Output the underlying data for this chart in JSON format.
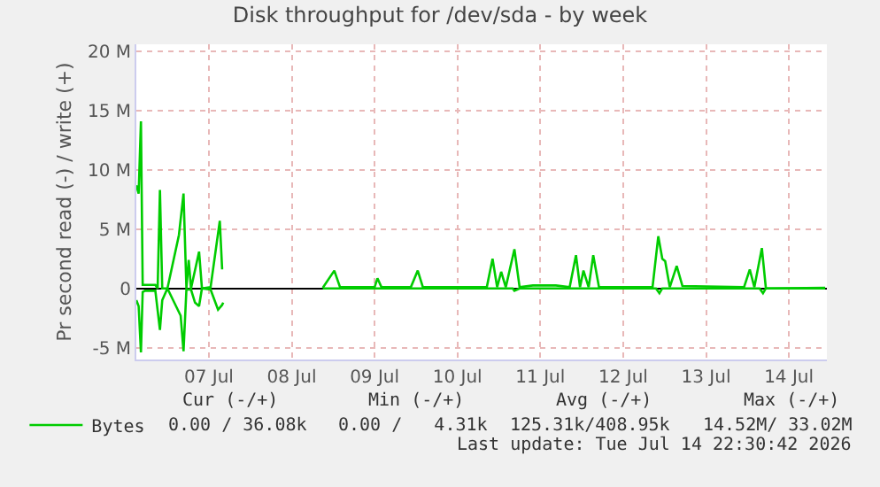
{
  "chart_data": {
    "type": "line",
    "title": "Disk throughput for /dev/sda - by week",
    "ylabel": "Pr second read (-) / write (+)",
    "xlim": [
      "2026-07-06T15:00",
      "2026-07-14T23:00"
    ],
    "xticks": [
      {
        "value": "2026-07-07T12:00",
        "label": "07 Jul"
      },
      {
        "value": "2026-07-08T12:00",
        "label": "08 Jul"
      },
      {
        "value": "2026-07-09T12:00",
        "label": "09 Jul"
      },
      {
        "value": "2026-07-10T12:00",
        "label": "10 Jul"
      },
      {
        "value": "2026-07-11T12:00",
        "label": "11 Jul"
      },
      {
        "value": "2026-07-12T12:00",
        "label": "12 Jul"
      },
      {
        "value": "2026-07-13T12:00",
        "label": "13 Jul"
      },
      {
        "value": "2026-07-14T12:00",
        "label": "14 Jul"
      }
    ],
    "ylim": [
      -6000000,
      20600000
    ],
    "yticks": [
      {
        "value": -5000000,
        "label": "-5 M"
      },
      0,
      {
        "value": 5000000,
        "label": "5 M"
      },
      {
        "value": 10000000,
        "label": "10 M"
      },
      {
        "value": 15000000,
        "label": "15 M"
      },
      {
        "value": 20000000,
        "label": "20 M"
      }
    ],
    "grid": true,
    "legend": "bottom left",
    "marker": "none",
    "line_style": "solid",
    "series": [
      {
        "name": "Bytes",
        "color": "#00cc00",
        "x": [
          "2026-07-06T15:00",
          "2026-07-06T15:40",
          "2026-07-06T16:20",
          "2026-07-06T16:50",
          "2026-07-06T17:30",
          "2026-07-06T20:30",
          "2026-07-06T21:10",
          "2026-07-06T21:50",
          "2026-07-06T22:30",
          "2026-07-07T00:00",
          "2026-07-07T03:20",
          "2026-07-07T04:40",
          "2026-07-07T05:30",
          "2026-07-07T06:10",
          "2026-07-07T06:50",
          "2026-07-07T09:10",
          "2026-07-07T10:00",
          "2026-07-07T12:30",
          "2026-07-07T15:10",
          "2026-07-07T15:50",
          "2026-07-07T16:10",
          "2026-07-07T18:00",
          "2026-07-08T21:00",
          "2026-07-09T00:20",
          "2026-07-09T02:00",
          "2026-07-09T06:00",
          "2026-07-09T12:00",
          "2026-07-09T12:50",
          "2026-07-09T14:00",
          "2026-07-09T22:30",
          "2026-07-10T00:30",
          "2026-07-10T02:00",
          "2026-07-10T20:30",
          "2026-07-10T22:10",
          "2026-07-10T23:30",
          "2026-07-11T00:40",
          "2026-07-11T02:00",
          "2026-07-11T04:30",
          "2026-07-11T06:00",
          "2026-07-11T09:50",
          "2026-07-11T16:30",
          "2026-07-11T20:30",
          "2026-07-11T22:20",
          "2026-07-11T23:30",
          "2026-07-12T00:30",
          "2026-07-12T02:00",
          "2026-07-12T03:20",
          "2026-07-12T05:00",
          "2026-07-12T10:50",
          "2026-07-12T20:30",
          "2026-07-12T22:10",
          "2026-07-12T23:20",
          "2026-07-13T00:10",
          "2026-07-13T01:30",
          "2026-07-13T03:30",
          "2026-07-13T05:10",
          "2026-07-13T23:00",
          "2026-07-14T00:40",
          "2026-07-14T02:00",
          "2026-07-14T04:10",
          "2026-07-14T05:20",
          "2026-07-14T22:30"
        ],
        "values": [
          8700000,
          8000000,
          14100000,
          300000,
          300000,
          300000,
          0,
          8300000,
          0,
          0,
          4500000,
          8000000,
          0,
          2400000,
          0,
          3100000,
          0,
          100000,
          5700000,
          1700000,
          1700000,
          null,
          50000,
          1500000,
          100000,
          100000,
          100000,
          850000,
          100000,
          100000,
          1500000,
          100000,
          100000,
          2500000,
          100000,
          1400000,
          100000,
          3300000,
          100000,
          250000,
          250000,
          100000,
          2800000,
          100000,
          1500000,
          100000,
          2800000,
          100000,
          100000,
          100000,
          4400000,
          2500000,
          2300000,
          100000,
          1900000,
          200000,
          100000,
          1600000,
          100000,
          3400000,
          0,
          50000
        ]
      },
      {
        "color": "#00cc00",
        "x": [
          "2026-07-06T15:00",
          "2026-07-06T15:40",
          "2026-07-06T16:20",
          "2026-07-06T16:50",
          "2026-07-06T17:30",
          "2026-07-06T20:30",
          "2026-07-06T21:50",
          "2026-07-06T22:30",
          "2026-07-07T00:00",
          "2026-07-07T03:50",
          "2026-07-07T04:40",
          "2026-07-07T05:30",
          "2026-07-07T06:50",
          "2026-07-07T08:00",
          "2026-07-07T09:10",
          "2026-07-07T10:00",
          "2026-07-07T12:30",
          "2026-07-07T14:40",
          "2026-07-07T15:50",
          "2026-07-07T16:10",
          "2026-07-07T18:00",
          "2026-07-08T21:00",
          "2026-07-11T04:00",
          "2026-07-11T04:30",
          "2026-07-11T06:00",
          "2026-07-12T21:30",
          "2026-07-12T22:30",
          "2026-07-12T23:20",
          "2026-07-14T03:30",
          "2026-07-14T04:30",
          "2026-07-14T05:20",
          "2026-07-14T22:30"
        ],
        "values": [
          -1000000,
          -1500000,
          -5400000,
          -300000,
          -200000,
          -200000,
          -3500000,
          -1000000,
          0,
          -2300000,
          -5300000,
          -100000,
          -100000,
          -1200000,
          -1500000,
          0,
          -100000,
          -1800000,
          -1400000,
          -1200000,
          null,
          0,
          0,
          -200000,
          0,
          0,
          -400000,
          0,
          0,
          -400000,
          0,
          0
        ]
      }
    ],
    "annotations": [
      "Cur (-/+)",
      "Min (-/+)",
      "Avg (-/+)",
      "Max (-/+)",
      "0.00 / 36.08k",
      "0.00 /   4.31k",
      "125.31k/408.95k",
      "14.52M/ 33.02M",
      "Last update: Tue Jul 14 22:30:42 2026"
    ]
  }
}
